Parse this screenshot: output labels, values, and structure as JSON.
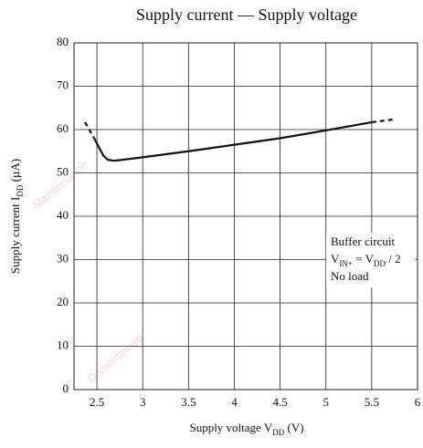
{
  "chart_data": {
    "type": "line",
    "title": "Supply current — Supply voltage",
    "x_label": [
      {
        "text": "Supply voltage  V"
      },
      {
        "text": "DD",
        "sub": true
      },
      {
        "text": "  (V)"
      }
    ],
    "y_label": [
      {
        "text": "Supply current  I"
      },
      {
        "text": "DD",
        "sub": true
      },
      {
        "text": "  (µA)"
      }
    ],
    "xlim": [
      2.25,
      6
    ],
    "ylim": [
      0,
      80
    ],
    "xticks": [
      2.5,
      3,
      3.5,
      4,
      4.5,
      5,
      5.5,
      6
    ],
    "yticks": [
      0,
      10,
      20,
      30,
      40,
      50,
      60,
      70,
      80
    ],
    "grid": true,
    "color": "#111111",
    "series": [
      {
        "style": "dashed",
        "x": [
          2.37,
          2.47
        ],
        "values": [
          61.7,
          58
        ]
      },
      {
        "style": "solid",
        "x": [
          2.47,
          2.52,
          2.57,
          2.62,
          2.69,
          3,
          3.5,
          4,
          4.5,
          5,
          5.5
        ],
        "values": [
          58,
          56,
          54,
          53,
          52.8,
          53.6,
          55,
          56.5,
          58,
          59.8,
          61.7
        ]
      },
      {
        "style": "dashed",
        "x": [
          5.5,
          5.73
        ],
        "values": [
          61.7,
          62.3
        ]
      }
    ],
    "annotation": [
      [
        {
          "text": "Buffer circuit"
        }
      ],
      [
        {
          "text": "V"
        },
        {
          "text": "IN+",
          "sub": true
        },
        {
          "text": " = V"
        },
        {
          "text": "DD",
          "sub": true
        },
        {
          "text": " / 2"
        }
      ],
      [
        {
          "text": "No load"
        }
      ]
    ],
    "watermark": [
      "Maintenance",
      "Discontinued"
    ]
  }
}
